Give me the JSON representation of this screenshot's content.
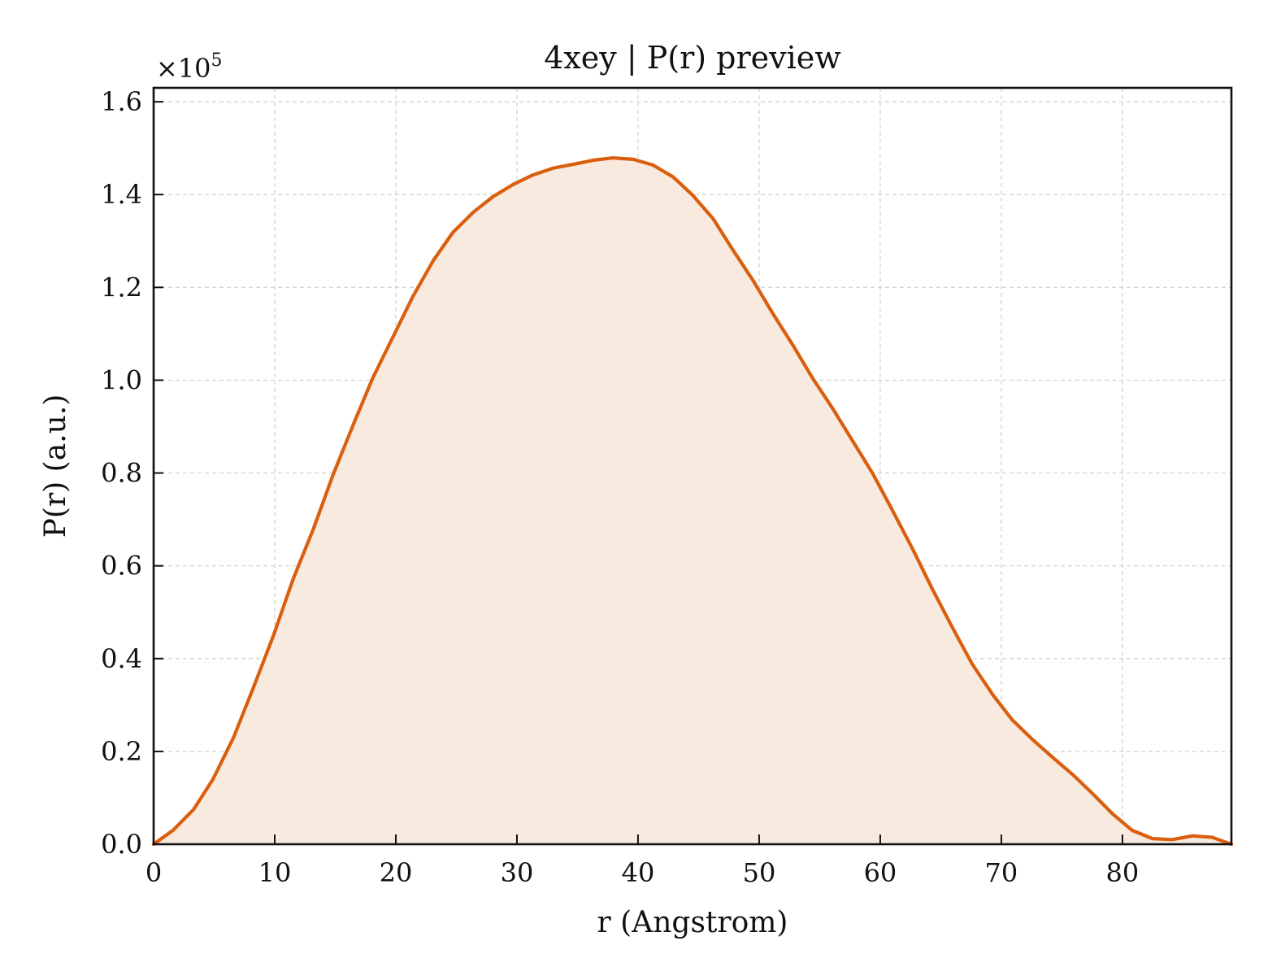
{
  "chart_data": {
    "type": "area",
    "title": "4xey | P(r) preview",
    "xlabel": "r (Angstrom)",
    "ylabel": "P(r) (a.u.)",
    "y_multiplier_prefix": "×10",
    "y_multiplier_exponent": "5",
    "xlim": [
      0,
      89
    ],
    "ylim": [
      0,
      1.63
    ],
    "x_ticks": [
      0,
      10,
      20,
      30,
      40,
      50,
      60,
      70,
      80
    ],
    "x_tick_labels": [
      "0",
      "10",
      "20",
      "30",
      "40",
      "50",
      "60",
      "70",
      "80"
    ],
    "y_ticks": [
      0,
      0.2,
      0.4,
      0.6,
      0.8,
      1.0,
      1.2,
      1.4,
      1.6
    ],
    "y_tick_labels": [
      "0.0",
      "0.2",
      "0.4",
      "0.6",
      "0.8",
      "1.0",
      "1.2",
      "1.4",
      "1.6"
    ],
    "grid": true,
    "line_color": "#d95f0e",
    "fill_color": "#f9eadf",
    "series": [
      {
        "x": [
          0,
          1.6,
          3.3,
          4.9,
          6.6,
          8.2,
          9.9,
          11.5,
          13.2,
          14.8,
          16.5,
          18.1,
          19.8,
          21.4,
          23.1,
          24.7,
          26.4,
          28.0,
          29.7,
          31.3,
          33.0,
          34.6,
          36.3,
          37.9,
          39.6,
          41.2,
          42.9,
          44.5,
          46.2,
          47.8,
          49.5,
          51.1,
          52.8,
          54.4,
          56.1,
          57.7,
          59.4,
          61.0,
          62.7,
          64.3,
          66.0,
          67.6,
          69.3,
          70.9,
          72.6,
          74.2,
          75.9,
          77.5,
          79.2,
          80.8,
          82.5,
          84.1,
          85.8,
          87.4,
          89.0
        ],
        "y": [
          0.0,
          0.03,
          0.075,
          0.14,
          0.23,
          0.335,
          0.45,
          0.57,
          0.68,
          0.795,
          0.905,
          1.005,
          1.095,
          1.18,
          1.258,
          1.318,
          1.362,
          1.395,
          1.422,
          1.442,
          1.457,
          1.465,
          1.474,
          1.479,
          1.476,
          1.464,
          1.438,
          1.399,
          1.348,
          1.282,
          1.215,
          1.145,
          1.075,
          1.005,
          0.938,
          0.87,
          0.798,
          0.72,
          0.635,
          0.55,
          0.465,
          0.388,
          0.322,
          0.268,
          0.225,
          0.188,
          0.15,
          0.11,
          0.065,
          0.03,
          0.012,
          0.01,
          0.018,
          0.015,
          0.0
        ]
      }
    ]
  }
}
